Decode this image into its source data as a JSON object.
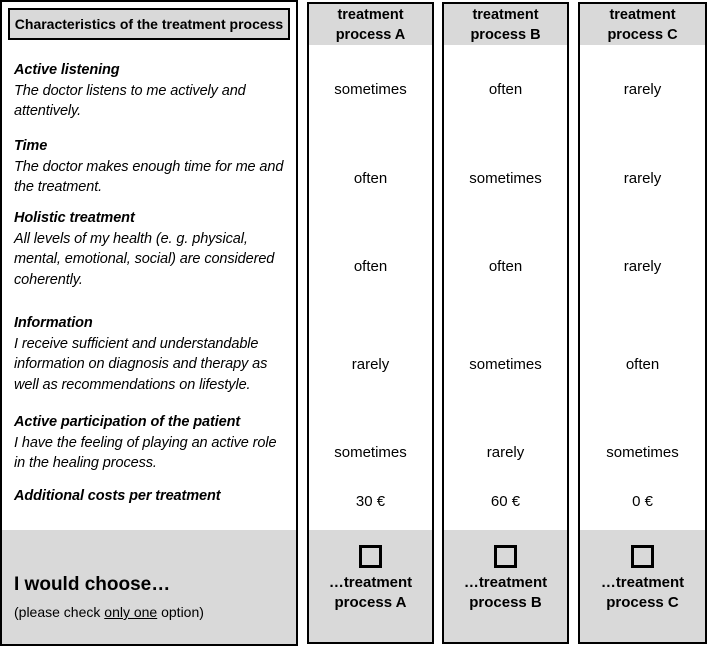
{
  "colors": {
    "header_bg": "#d9d9d9",
    "border": "#000000",
    "text": "#000000"
  },
  "left_panel": {
    "header": "Characteristics of the treatment process",
    "attributes": [
      {
        "title": "Active listening",
        "description_lines": [
          "The doctor listens to me actively and",
          "attentively."
        ]
      },
      {
        "title": "Time",
        "description_lines": [
          "The doctor makes enough time for me and",
          "the treatment."
        ]
      },
      {
        "title": "Holistic treatment",
        "description_lines": [
          "All levels of my health (e. g. physical,",
          "mental, emotional, social) are considered",
          "coherently."
        ]
      },
      {
        "title": "Information",
        "description_lines": [
          "I receive sufficient and understandable",
          "information on diagnosis and therapy as",
          "well as recommendations on lifestyle."
        ]
      },
      {
        "title": "Active participation of the patient",
        "description_lines": [
          "I have the feeling of playing an active role",
          "in the healing process."
        ]
      },
      {
        "title": "Additional costs per treatment",
        "description_lines": []
      }
    ],
    "choice_prompt": "I would choose…",
    "choice_note_prefix": "(please check ",
    "choice_note_underlined": "only one",
    "choice_note_suffix": " option)"
  },
  "options": [
    {
      "id": "A",
      "header_lines": [
        "treatment",
        "process A"
      ],
      "values": [
        "sometimes",
        "often",
        "often",
        "rarely",
        "sometimes",
        "30 €"
      ],
      "choice_label_lines": [
        "…treatment",
        "process A"
      ],
      "checkbox_checked": false
    },
    {
      "id": "B",
      "header_lines": [
        "treatment",
        "process B"
      ],
      "values": [
        "often",
        "sometimes",
        "often",
        "sometimes",
        "rarely",
        "60 €"
      ],
      "choice_label_lines": [
        "…treatment",
        "process B"
      ],
      "checkbox_checked": false
    },
    {
      "id": "C",
      "header_lines": [
        "treatment",
        "process C"
      ],
      "values": [
        "rarely",
        "rarely",
        "rarely",
        "often",
        "sometimes",
        "0 €"
      ],
      "choice_label_lines": [
        "…treatment",
        "process C"
      ],
      "checkbox_checked": false
    }
  ]
}
